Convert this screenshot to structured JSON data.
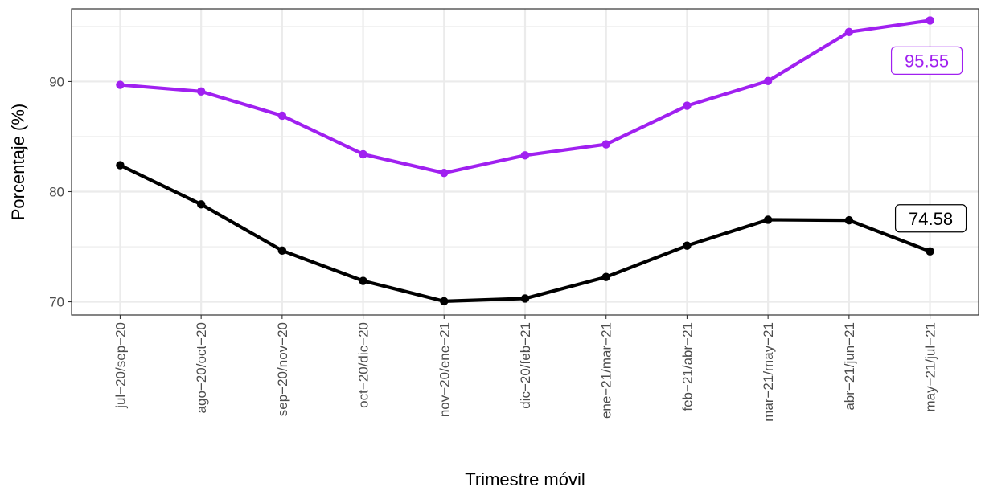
{
  "chart_data": {
    "type": "line",
    "title": "",
    "xlabel": "Trimestre móvil",
    "ylabel": "Porcentaje (%)",
    "categories": [
      "jul−20/sep−20",
      "ago−20/oct−20",
      "sep−20/nov−20",
      "oct−20/dic−20",
      "nov−20/ene−21",
      "dic−20/feb−21",
      "ene−21/mar−21",
      "feb−21/abr−21",
      "mar−21/may−21",
      "abr−21/jun−21",
      "may−21/jul−21"
    ],
    "ylim": [
      68.8,
      96.6
    ],
    "yticks": [
      "70",
      "80",
      "90"
    ],
    "ytick_values": [
      70,
      80,
      90
    ],
    "grid": true,
    "series": [
      {
        "color": "#a020f0",
        "values": [
          89.7,
          89.1,
          86.9,
          83.4,
          81.7,
          83.3,
          84.3,
          87.8,
          90.05,
          94.5,
          95.55
        ],
        "end_label": "95.55"
      },
      {
        "color": "#000000",
        "values": [
          82.4,
          78.85,
          74.65,
          71.9,
          70.05,
          70.3,
          72.25,
          75.1,
          77.45,
          77.4,
          74.58
        ],
        "end_label": "74.58"
      }
    ]
  }
}
